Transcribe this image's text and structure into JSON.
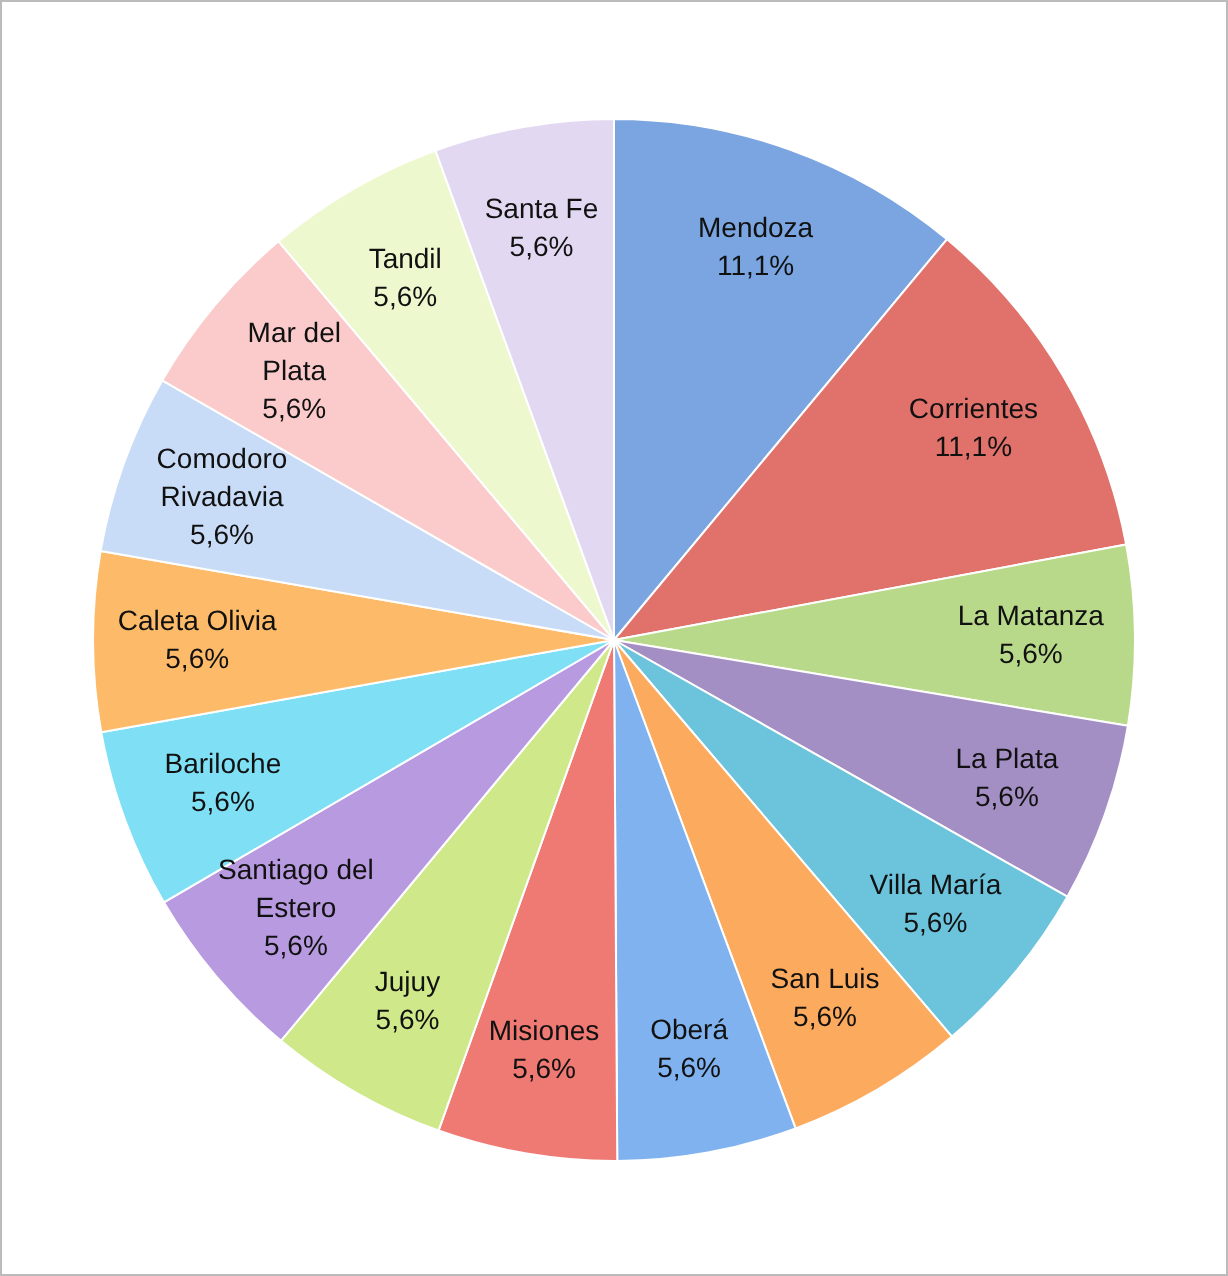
{
  "chart_data": {
    "type": "pie",
    "categories": [
      "Mendoza",
      "Corrientes",
      "La Matanza",
      "La Plata",
      "Villa María",
      "San Luis",
      "Oberá",
      "Misiones",
      "Jujuy",
      "Santiago del Estero",
      "Bariloche",
      "Caleta Olivia",
      "Comodoro Rivadavia",
      "Mar del Plata",
      "Tandil",
      "Santa Fe"
    ],
    "values": [
      11.1,
      11.1,
      5.6,
      5.6,
      5.6,
      5.6,
      5.6,
      5.6,
      5.6,
      5.6,
      5.6,
      5.6,
      5.6,
      5.6,
      5.6,
      5.6
    ],
    "value_labels": [
      "11,1%",
      "11,1%",
      "5,6%",
      "5,6%",
      "5,6%",
      "5,6%",
      "5,6%",
      "5,6%",
      "5,6%",
      "5,6%",
      "5,6%",
      "5,6%",
      "5,6%",
      "5,6%",
      "5,6%",
      "5,6%"
    ],
    "colors": [
      "#7aa5e0",
      "#e0716b",
      "#b8d98a",
      "#a48fc4",
      "#6cc3dc",
      "#fbaa5e",
      "#7fb2ef",
      "#ef7a74",
      "#cfe88a",
      "#b89ae0",
      "#7fe0f5",
      "#fdbb6a",
      "#c9dcf7",
      "#fbcaca",
      "#eef8cf",
      "#e2d8f2"
    ],
    "legend": false
  }
}
